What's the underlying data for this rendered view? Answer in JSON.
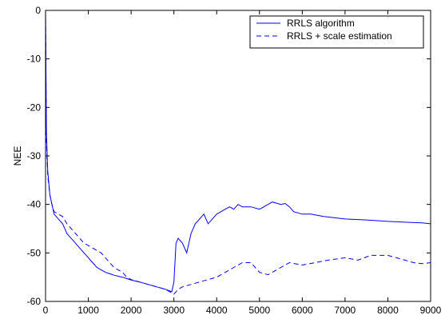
{
  "chart_data": {
    "type": "line",
    "title": "",
    "xlabel": "",
    "ylabel": "NEE",
    "xlim": [
      0,
      9000
    ],
    "ylim": [
      -60,
      0
    ],
    "xticks": [
      0,
      1000,
      2000,
      3000,
      4000,
      5000,
      6000,
      7000,
      8000,
      9000
    ],
    "yticks": [
      0,
      -10,
      -20,
      -30,
      -40,
      -50,
      -60
    ],
    "grid": false,
    "legend_position": "top-right",
    "series_color": "#0000ff",
    "series": [
      {
        "name": "RRLS algorithm",
        "style": "solid",
        "x": [
          0,
          20,
          50,
          100,
          150,
          200,
          300,
          400,
          500,
          600,
          700,
          800,
          900,
          1000,
          1100,
          1200,
          1300,
          1400,
          1500,
          1600,
          1700,
          1800,
          1900,
          2000,
          2200,
          2400,
          2600,
          2800,
          2950,
          3000,
          3050,
          3100,
          3200,
          3300,
          3400,
          3500,
          3600,
          3700,
          3800,
          3900,
          4000,
          4100,
          4200,
          4300,
          4400,
          4500,
          4600,
          4800,
          5000,
          5200,
          5300,
          5500,
          5600,
          5700,
          5800,
          6000,
          6200,
          6500,
          7000,
          7500,
          8000,
          8500,
          8800,
          9000
        ],
        "y": [
          0,
          -25,
          -33,
          -38,
          -40,
          -42,
          -43,
          -44,
          -46,
          -47,
          -48,
          -49,
          -50,
          -51,
          -52,
          -53,
          -53.5,
          -54,
          -54.3,
          -54.6,
          -54.8,
          -55,
          -55.3,
          -55.6,
          -56,
          -56.5,
          -57,
          -57.5,
          -58,
          -56,
          -48,
          -47,
          -48,
          -50,
          -46,
          -44,
          -43,
          -42,
          -44,
          -43,
          -42,
          -41.5,
          -41,
          -40.5,
          -41,
          -40,
          -40.5,
          -40.5,
          -41,
          -40,
          -39.5,
          -40,
          -39.8,
          -40.5,
          -41.5,
          -42,
          -42,
          -42.5,
          -43,
          -43.2,
          -43.5,
          -43.7,
          -43.8,
          -44
        ]
      },
      {
        "name": "RRLS + scale estimation",
        "style": "dashed",
        "x": [
          0,
          20,
          50,
          100,
          150,
          200,
          300,
          400,
          500,
          600,
          700,
          800,
          900,
          1000,
          1100,
          1200,
          1300,
          1400,
          1500,
          1600,
          1700,
          1800,
          1900,
          2000,
          2200,
          2400,
          2600,
          2800,
          3000,
          3100,
          3200,
          3400,
          3600,
          3800,
          4000,
          4200,
          4400,
          4500,
          4600,
          4800,
          5000,
          5200,
          5500,
          5700,
          6000,
          6300,
          6600,
          7000,
          7300,
          7600,
          8000,
          8200,
          8400,
          8600,
          8800,
          9000
        ],
        "y": [
          0,
          -27,
          -34,
          -38,
          -40,
          -41.5,
          -42,
          -42.5,
          -44,
          -45,
          -46,
          -47,
          -48,
          -48.5,
          -49,
          -49.5,
          -50,
          -51,
          -52,
          -53,
          -53.5,
          -54,
          -55,
          -55.5,
          -56,
          -56.5,
          -57,
          -57.5,
          -58.5,
          -57.5,
          -57,
          -56.5,
          -56,
          -55.5,
          -55,
          -54,
          -53,
          -52.5,
          -52,
          -52,
          -54,
          -54.5,
          -53,
          -52,
          -52.5,
          -52,
          -51.5,
          -51,
          -51.5,
          -50.5,
          -50.5,
          -51,
          -51.5,
          -52,
          -52.2,
          -52
        ]
      }
    ]
  }
}
